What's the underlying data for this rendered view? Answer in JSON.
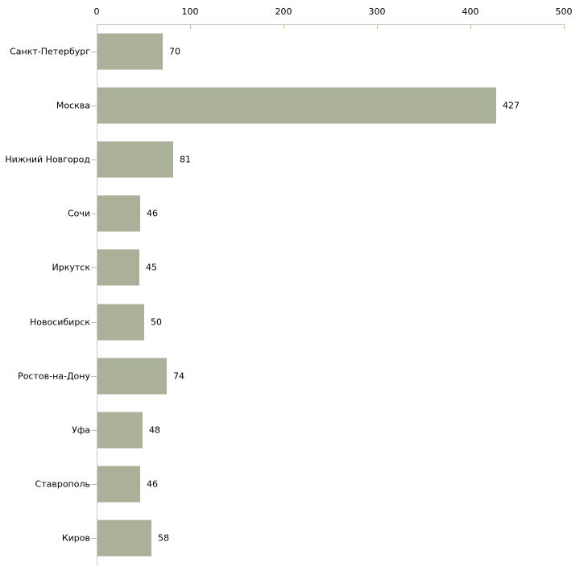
{
  "chart_data": {
    "type": "bar",
    "orientation": "horizontal",
    "title": "",
    "xlabel": "",
    "ylabel": "",
    "categories": [
      "Санкт-Петербург",
      "Москва",
      "Нижний Новгород",
      "Сочи",
      "Иркутск",
      "Новосибирск",
      "Ростов-на-Дону",
      "Уфа",
      "Ставрополь",
      "Киров"
    ],
    "values": [
      70,
      427,
      81,
      46,
      45,
      50,
      74,
      48,
      46,
      58
    ],
    "value_labels": [
      "70",
      "427",
      "81",
      "46",
      "45",
      "50",
      "74",
      "48",
      "46",
      "58"
    ],
    "xlim": [
      0,
      500
    ],
    "x_ticks": [
      "0",
      "100",
      "200",
      "300",
      "400",
      "500"
    ],
    "x_tick_values": [
      0,
      100,
      200,
      300,
      400,
      500
    ],
    "axis_position": "top",
    "grid": false,
    "legend": "none",
    "colors": {
      "bar_fill": "#abb199",
      "axis_line": "#c9c9c9",
      "tick_mark": "#c3c396",
      "text": "#000000",
      "background": "#ffffff"
    }
  }
}
